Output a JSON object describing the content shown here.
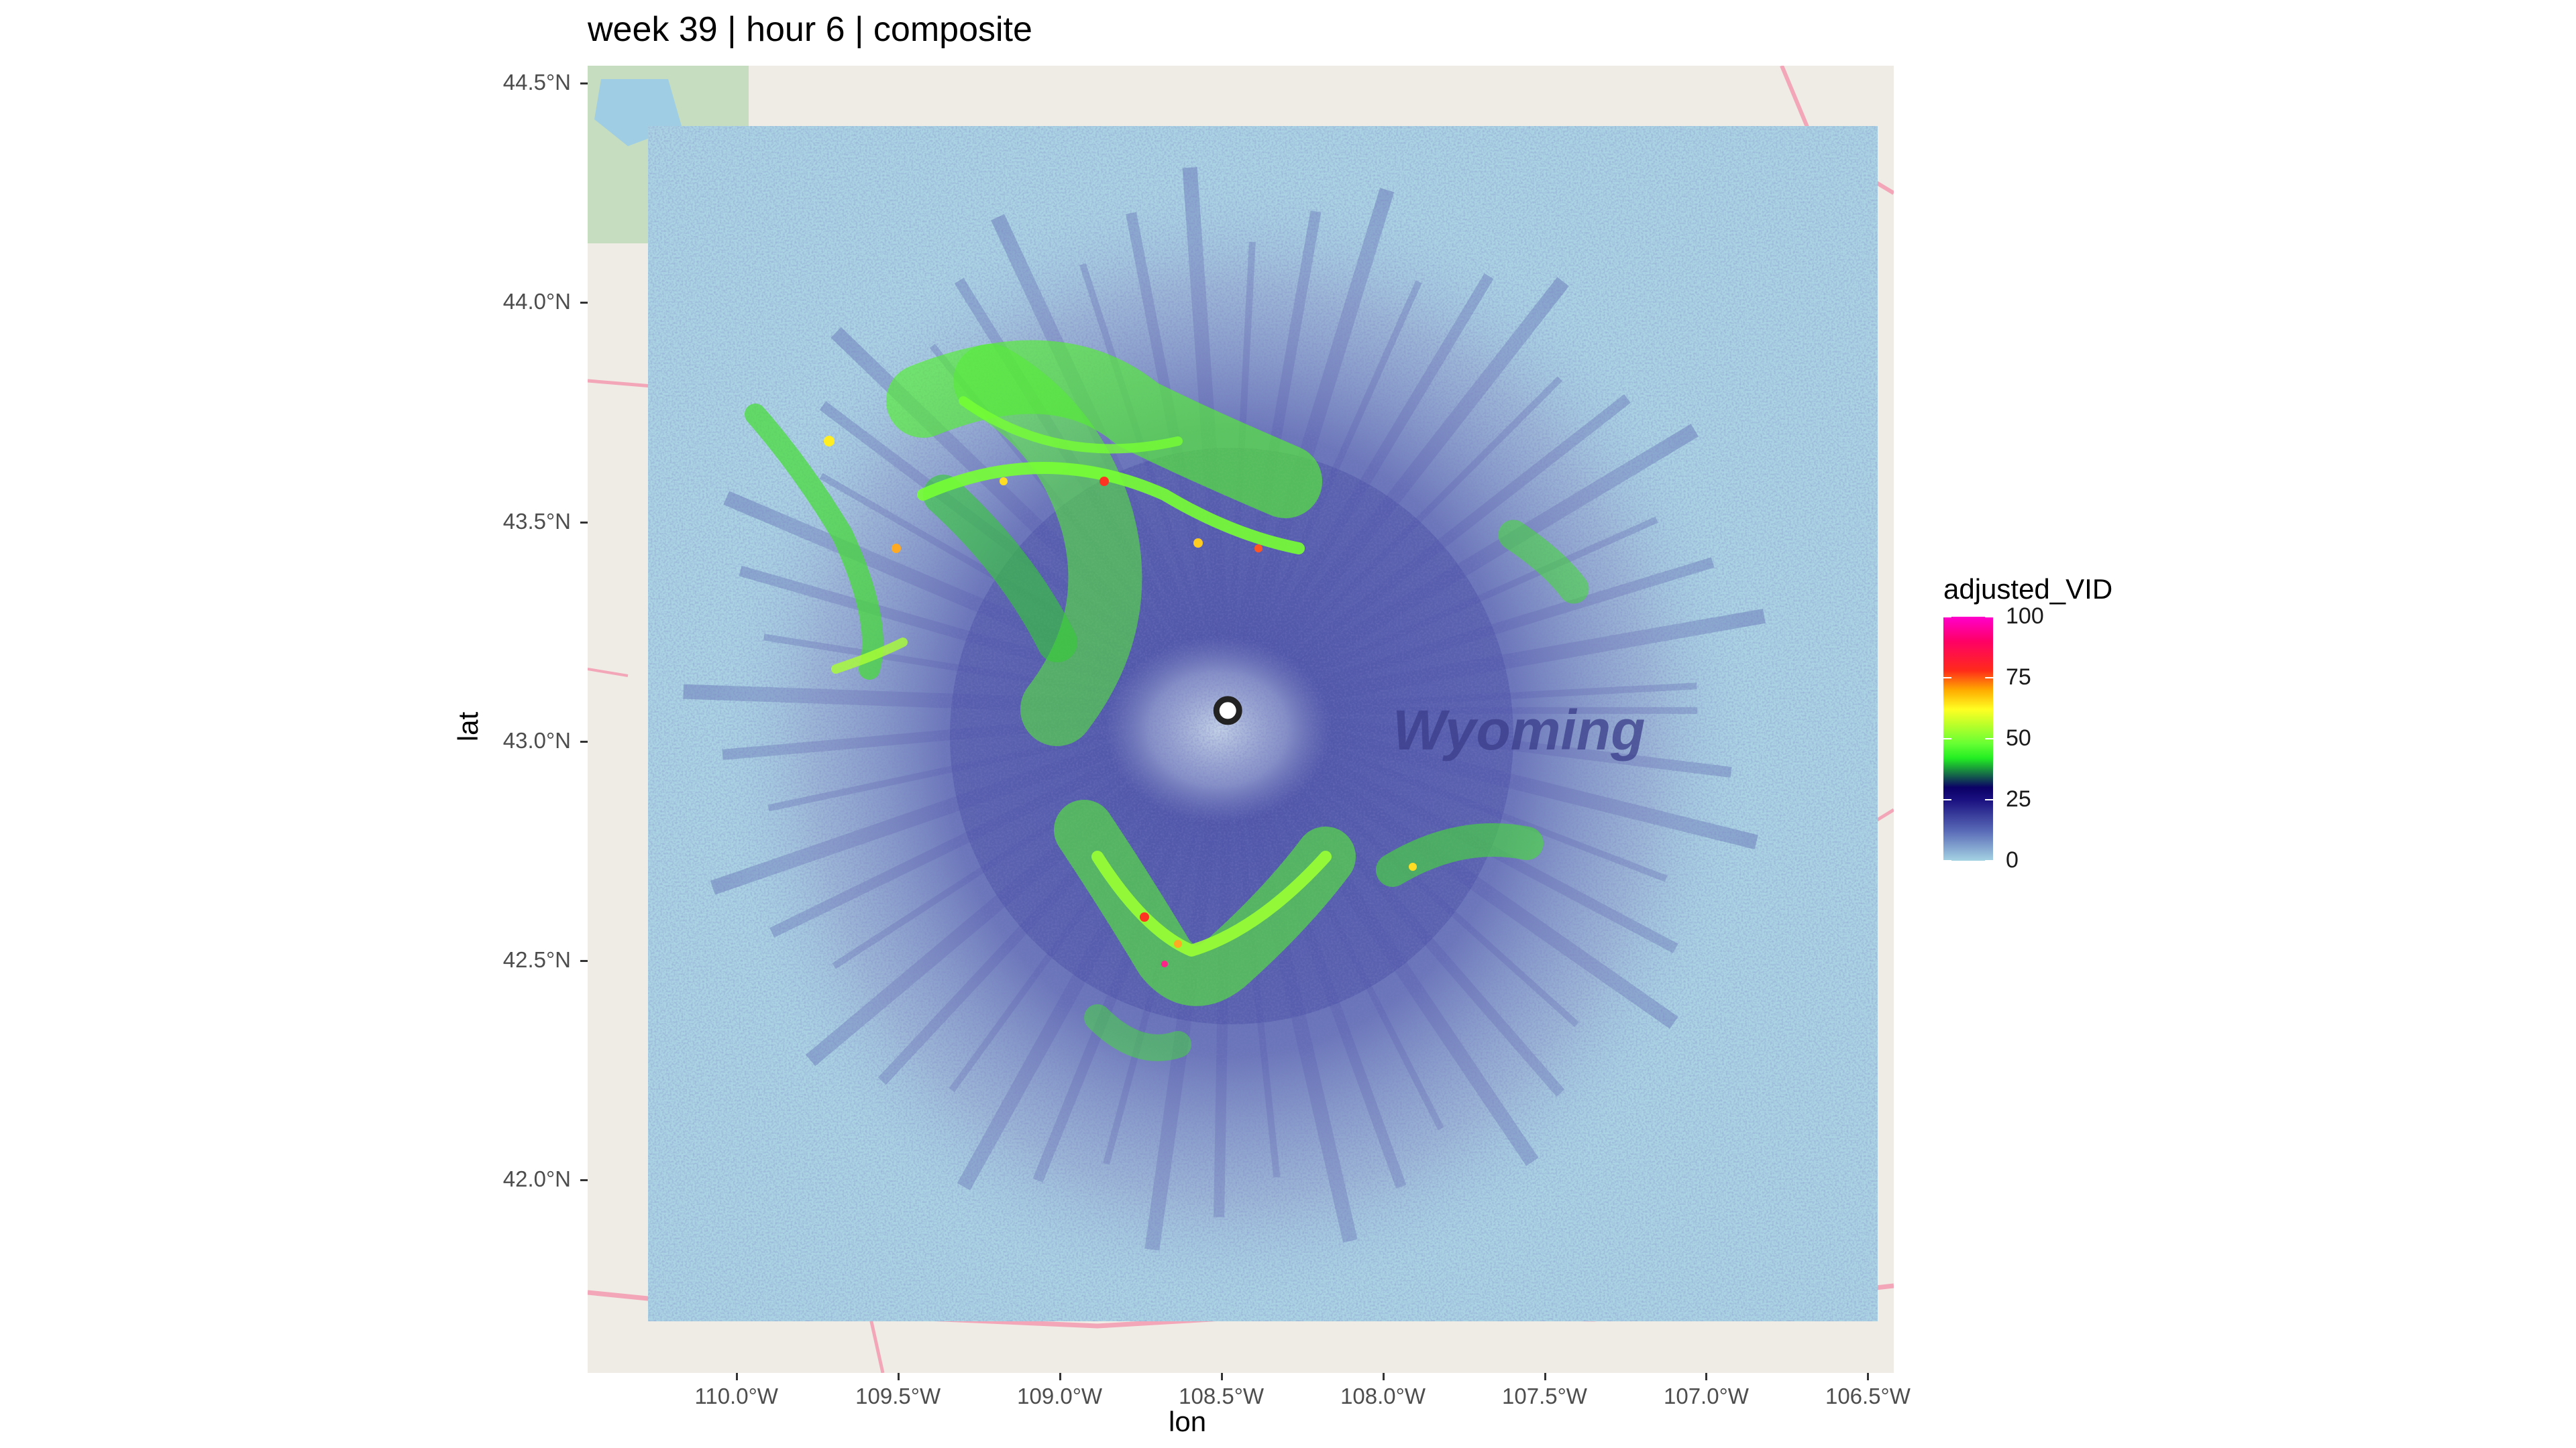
{
  "title": "week 39 | hour 6 | composite",
  "axes": {
    "x_title": "lon",
    "y_title": "lat",
    "x_ticks": [
      "110.0°W",
      "109.5°W",
      "109.0°W",
      "108.5°W",
      "108.0°W",
      "107.5°W",
      "107.0°W",
      "106.5°W"
    ],
    "x_tick_values": [
      -110.0,
      -109.5,
      -109.0,
      -108.5,
      -108.0,
      -107.5,
      -107.0,
      -106.5
    ],
    "y_ticks": [
      "44.5°N",
      "44.0°N",
      "43.5°N",
      "43.0°N",
      "42.5°N",
      "42.0°N"
    ],
    "y_tick_values": [
      44.5,
      44.0,
      43.5,
      43.0,
      42.5,
      42.0
    ],
    "x_range": [
      -110.46,
      -106.42
    ],
    "y_range": [
      41.56,
      44.54
    ]
  },
  "map": {
    "place_label": "Wyoming",
    "radar_site": {
      "lon": -108.48,
      "lat": 43.07
    },
    "basemap_color": "#efebe5",
    "water_color": "#a9d3e6",
    "road_color": "#f0a0b0"
  },
  "legend": {
    "title": "adjusted_VID",
    "labels": [
      "100",
      "75",
      "50",
      "25",
      "0"
    ],
    "values": [
      100,
      75,
      50,
      25,
      0
    ]
  }
}
